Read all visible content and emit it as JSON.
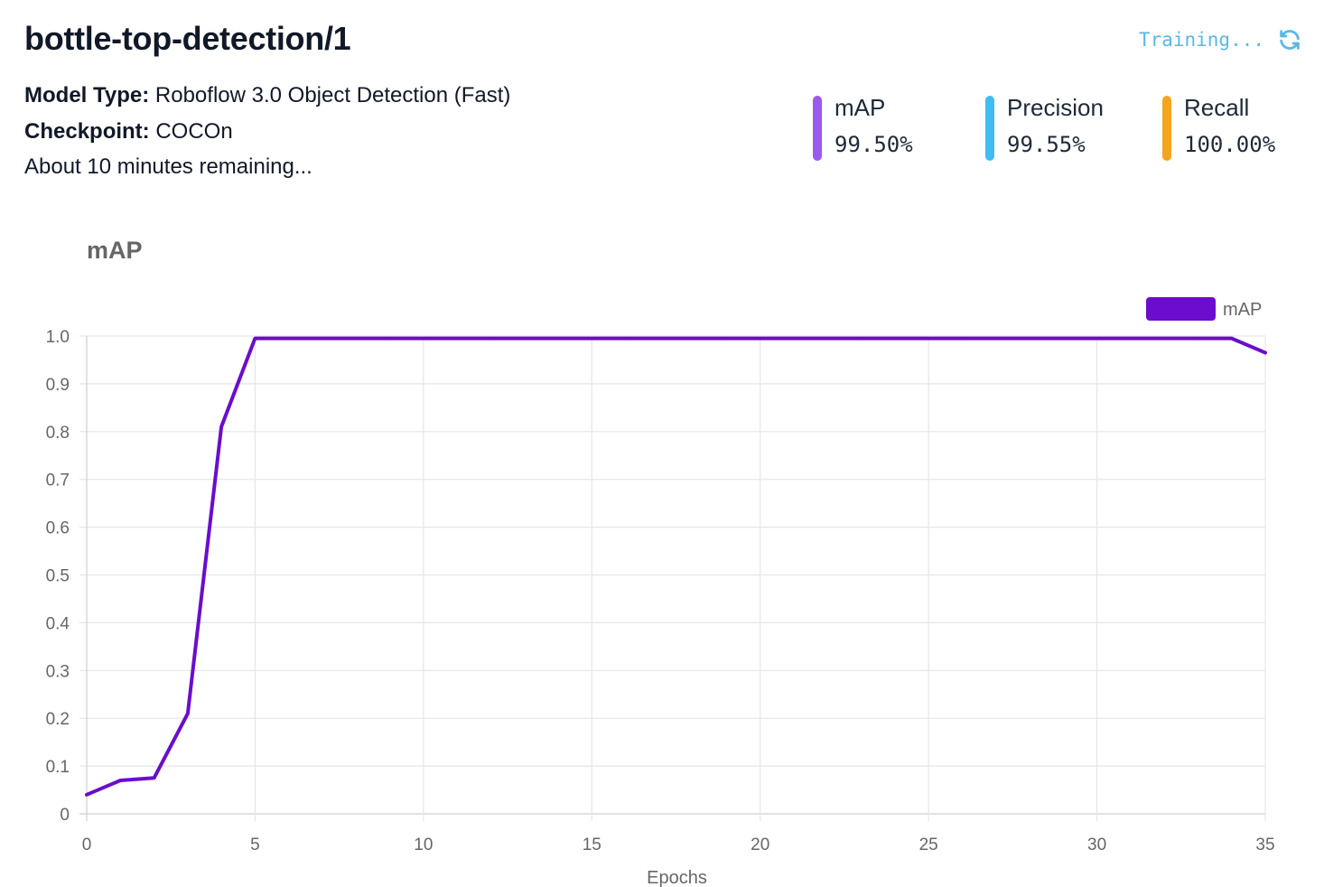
{
  "header": {
    "title": "bottle-top-detection/1",
    "status_text": "Training...",
    "status_icon": "refresh-icon",
    "status_color": "#5bb8e3"
  },
  "meta": {
    "model_type_key": "Model Type:",
    "model_type_value": "Roboflow 3.0 Object Detection (Fast)",
    "checkpoint_key": "Checkpoint:",
    "checkpoint_value": "COCOn",
    "remaining": "About 10 minutes remaining..."
  },
  "metrics": [
    {
      "label": "mAP",
      "value": "99.50%",
      "color": "#9b59f0"
    },
    {
      "label": "Precision",
      "value": "99.55%",
      "color": "#3fbcf2"
    },
    {
      "label": "Recall",
      "value": "100.00%",
      "color": "#f5a51c"
    }
  ],
  "chart_data": {
    "type": "line",
    "title": "mAP",
    "xlabel": "Epochs",
    "ylabel": "",
    "xlim": [
      0,
      35
    ],
    "ylim": [
      0,
      1.0
    ],
    "x_ticks": [
      "0",
      "5",
      "10",
      "15",
      "20",
      "25",
      "30",
      "35"
    ],
    "y_ticks": [
      "0",
      "0.1",
      "0.2",
      "0.3",
      "0.4",
      "0.5",
      "0.6",
      "0.7",
      "0.8",
      "0.9",
      "1.0"
    ],
    "grid": true,
    "legend": "top-right",
    "series": [
      {
        "name": "mAP",
        "color": "#6a0dcc",
        "x": [
          0,
          1,
          2,
          3,
          4,
          5,
          6,
          7,
          8,
          9,
          10,
          11,
          12,
          13,
          14,
          15,
          16,
          17,
          18,
          19,
          20,
          21,
          22,
          23,
          24,
          25,
          26,
          27,
          28,
          29,
          30,
          31,
          32,
          33,
          34,
          35
        ],
        "y": [
          0.04,
          0.07,
          0.075,
          0.21,
          0.81,
          0.995,
          0.995,
          0.995,
          0.995,
          0.995,
          0.995,
          0.995,
          0.995,
          0.995,
          0.995,
          0.995,
          0.995,
          0.995,
          0.995,
          0.995,
          0.995,
          0.995,
          0.995,
          0.995,
          0.995,
          0.995,
          0.995,
          0.995,
          0.995,
          0.995,
          0.995,
          0.995,
          0.995,
          0.995,
          0.995,
          0.965
        ]
      }
    ]
  }
}
